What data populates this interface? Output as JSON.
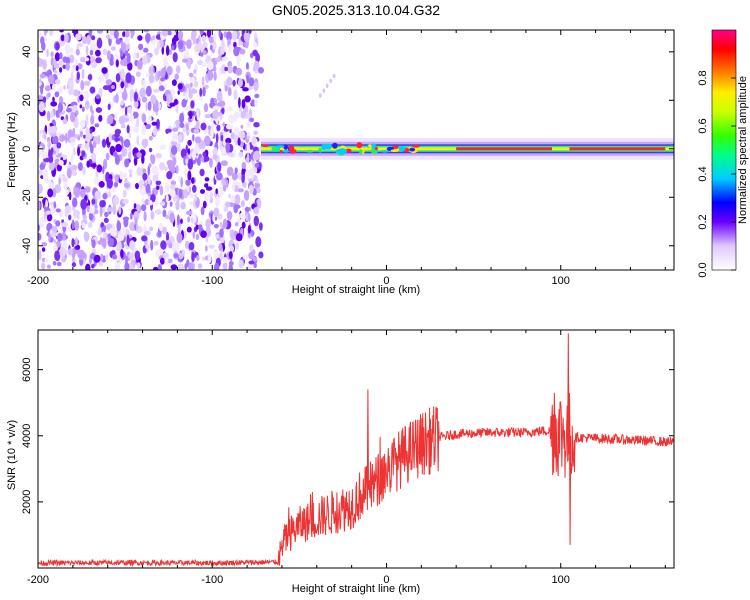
{
  "chart_data": [
    {
      "type": "heatmap",
      "title": "GN05.2025.313.10.04.G32",
      "xlabel": "Height of straight line (km)",
      "ylabel": "Frequency (Hz)",
      "xlim": [
        -200,
        165
      ],
      "ylim": [
        -50,
        49
      ],
      "x_ticks": [
        "-200",
        "-100",
        "0",
        "100"
      ],
      "y_ticks": [
        "-40",
        "-20",
        "0",
        "20",
        "40"
      ],
      "colorbar": {
        "label": "Normalized spectral amplitude",
        "range": [
          0,
          1
        ],
        "ticks": [
          "0.0",
          "0.2",
          "0.4",
          "0.6",
          "0.8"
        ]
      },
      "description_regions": {
        "noise_region_x": [
          -200,
          -72
        ],
        "signal_ridge_x": [
          -72,
          165
        ],
        "signal_ridge_frequency": 0
      }
    },
    {
      "type": "line",
      "xlabel": "Height of straight line (km)",
      "ylabel": "SNR (10 * v/v)",
      "xlim": [
        -200,
        165
      ],
      "ylim": [
        0,
        7200
      ],
      "x_ticks": [
        "-200",
        "-100",
        "0",
        "100"
      ],
      "y_ticks": [
        "2000",
        "4000",
        "6000"
      ],
      "series": [
        {
          "name": "SNR",
          "color": "#ee3333",
          "x": [
            -200,
            -150,
            -100,
            -62,
            -58,
            -50,
            -40,
            -30,
            -20,
            -15,
            -10,
            -5,
            0,
            10,
            20,
            30,
            40,
            60,
            80,
            90,
            95,
            100,
            103,
            105,
            108,
            110,
            130,
            150,
            165
          ],
          "y": [
            150,
            160,
            150,
            180,
            900,
            1300,
            1500,
            1700,
            1900,
            2200,
            2400,
            2650,
            2950,
            3400,
            3750,
            3950,
            4050,
            4100,
            4100,
            4150,
            4150,
            4100,
            4000,
            4000,
            3950,
            3950,
            3900,
            3850,
            3800
          ]
        }
      ],
      "spikes": [
        {
          "x": -11,
          "y": 5400
        },
        {
          "x": 96,
          "y": 5300
        },
        {
          "x": 104,
          "y": 7100
        },
        {
          "x": 105,
          "y": 700
        }
      ]
    }
  ]
}
